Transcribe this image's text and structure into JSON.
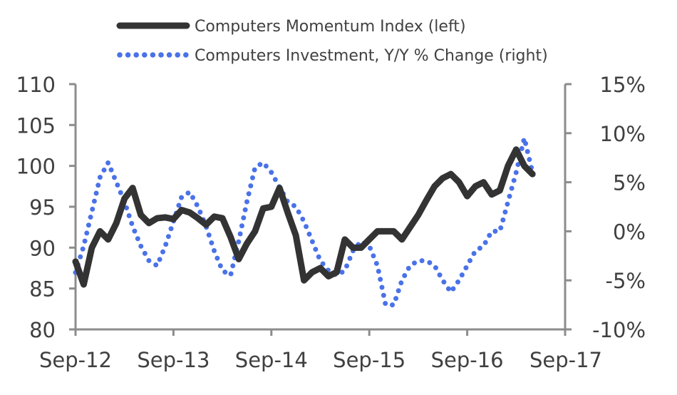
{
  "chart_data": {
    "type": "line",
    "x_labels": [
      "Sep-12",
      "Sep-13",
      "Sep-14",
      "Sep-15",
      "Sep-16",
      "Sep-17"
    ],
    "x_start": "2012-09",
    "y_left": {
      "min": 80,
      "max": 110,
      "ticks": [
        "110",
        "105",
        "100",
        "95",
        "90",
        "85",
        "80"
      ]
    },
    "y_right": {
      "min": -10,
      "max": 15,
      "ticks": [
        "15%",
        "10%",
        "5%",
        "0%",
        "-5%",
        "-10%"
      ]
    },
    "grid": false,
    "legend_position": "top",
    "series": [
      {
        "name": "Computers Momentum Index (left)",
        "axis": "left",
        "style": "solid",
        "color": "#333333",
        "values": [
          88.3,
          85.5,
          90.0,
          92.0,
          91.0,
          93.0,
          96.0,
          97.3,
          94.0,
          93.0,
          93.6,
          93.7,
          93.5,
          94.6,
          94.3,
          93.6,
          92.8,
          93.8,
          93.6,
          91.3,
          88.6,
          90.5,
          92.0,
          94.8,
          95.0,
          97.3,
          94.3,
          91.5,
          86.0,
          87.0,
          87.5,
          86.5,
          87.0,
          91.0,
          90.0,
          90.0,
          91.0,
          92.0,
          92.0,
          92.0,
          91.0,
          92.5,
          94.0,
          95.8,
          97.5,
          98.5,
          99.0,
          98.0,
          96.3,
          97.5,
          98.0,
          96.5,
          97.0,
          100.0,
          102.0,
          100.0,
          99.0
        ]
      },
      {
        "name": "Computers Investment, Y/Y % Change (right)",
        "axis": "right",
        "style": "dotted",
        "color": "#4a72e8",
        "values": [
          -4.2,
          -1.5,
          2.0,
          5.5,
          7.0,
          5.0,
          3.0,
          0.5,
          -1.5,
          -3.0,
          -3.5,
          -1.5,
          1.0,
          3.5,
          4.0,
          2.5,
          0.5,
          -2.0,
          -4.0,
          -4.5,
          -1.0,
          3.0,
          6.5,
          7.0,
          6.0,
          4.5,
          3.0,
          2.5,
          1.0,
          -1.0,
          -3.0,
          -4.0,
          -4.5,
          -4.0,
          -2.0,
          -1.0,
          -1.5,
          -3.5,
          -7.5,
          -7.5,
          -5.0,
          -3.5,
          -3.0,
          -3.0,
          -3.5,
          -5.0,
          -6.2,
          -5.0,
          -3.5,
          -2.0,
          -1.5,
          0.0,
          0.0,
          3.0,
          6.0,
          9.5,
          6.0
        ]
      }
    ]
  }
}
